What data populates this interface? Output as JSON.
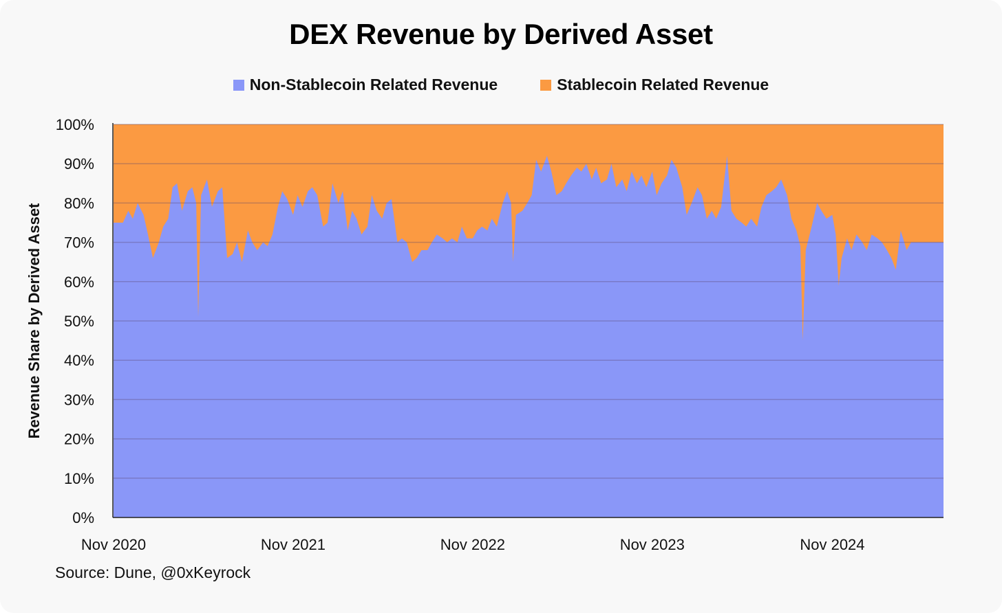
{
  "chart_data": {
    "type": "area",
    "stacked": true,
    "percent": true,
    "title": "DEX Revenue by Derived Asset",
    "ylabel": "Revenue Share by Derived Asset",
    "xlabel": "",
    "source": "Source: Dune, @0xKeyrock",
    "ylim": [
      0,
      100
    ],
    "yticks": [
      0,
      10,
      20,
      30,
      40,
      50,
      60,
      70,
      80,
      90,
      100
    ],
    "ytick_labels": [
      "0%",
      "10%",
      "20%",
      "30%",
      "40%",
      "50%",
      "60%",
      "70%",
      "80%",
      "90%",
      "100%"
    ],
    "xlim": [
      "2020-11-01",
      "2025-06-15"
    ],
    "xticks": [
      "2020-11-01",
      "2021-11-01",
      "2022-11-01",
      "2023-11-01",
      "2024-11-01"
    ],
    "xtick_labels": [
      "Nov 2020",
      "Nov 2021",
      "Nov 2022",
      "Nov 2023",
      "Nov 2024"
    ],
    "grid": true,
    "legend_position": "top-center",
    "series": [
      {
        "name": "Non-Stablecoin Related Revenue",
        "color": "#8a97f8",
        "points": [
          [
            "2020-11-10",
            75
          ],
          [
            "2020-11-20",
            75
          ],
          [
            "2020-12-01",
            78
          ],
          [
            "2020-12-10",
            76
          ],
          [
            "2020-12-20",
            80
          ],
          [
            "2021-01-01",
            77
          ],
          [
            "2021-01-10",
            72
          ],
          [
            "2021-01-20",
            66
          ],
          [
            "2021-02-01",
            70
          ],
          [
            "2021-02-10",
            74
          ],
          [
            "2021-02-20",
            76
          ],
          [
            "2021-03-01",
            84
          ],
          [
            "2021-03-10",
            85
          ],
          [
            "2021-03-20",
            78
          ],
          [
            "2021-04-01",
            83
          ],
          [
            "2021-04-10",
            84
          ],
          [
            "2021-04-18",
            80
          ],
          [
            "2021-04-22",
            51
          ],
          [
            "2021-04-28",
            82
          ],
          [
            "2021-05-10",
            86
          ],
          [
            "2021-05-20",
            79
          ],
          [
            "2021-06-01",
            83
          ],
          [
            "2021-06-10",
            84
          ],
          [
            "2021-06-20",
            66
          ],
          [
            "2021-07-01",
            67
          ],
          [
            "2021-07-10",
            70
          ],
          [
            "2021-07-20",
            65
          ],
          [
            "2021-08-01",
            73
          ],
          [
            "2021-08-10",
            70
          ],
          [
            "2021-08-20",
            68
          ],
          [
            "2021-09-01",
            70
          ],
          [
            "2021-09-10",
            69
          ],
          [
            "2021-09-20",
            72
          ],
          [
            "2021-10-01",
            79
          ],
          [
            "2021-10-10",
            83
          ],
          [
            "2021-10-20",
            81
          ],
          [
            "2021-11-01",
            77
          ],
          [
            "2021-11-10",
            82
          ],
          [
            "2021-11-20",
            79
          ],
          [
            "2021-12-01",
            83
          ],
          [
            "2021-12-10",
            84
          ],
          [
            "2021-12-20",
            82
          ],
          [
            "2022-01-01",
            74
          ],
          [
            "2022-01-10",
            75
          ],
          [
            "2022-01-20",
            85
          ],
          [
            "2022-02-01",
            80
          ],
          [
            "2022-02-10",
            83
          ],
          [
            "2022-02-20",
            73
          ],
          [
            "2022-03-01",
            78
          ],
          [
            "2022-03-10",
            76
          ],
          [
            "2022-03-20",
            72
          ],
          [
            "2022-04-01",
            74
          ],
          [
            "2022-04-10",
            82
          ],
          [
            "2022-04-20",
            78
          ],
          [
            "2022-05-01",
            76
          ],
          [
            "2022-05-10",
            80
          ],
          [
            "2022-05-20",
            81
          ],
          [
            "2022-06-01",
            70
          ],
          [
            "2022-06-10",
            71
          ],
          [
            "2022-06-20",
            70
          ],
          [
            "2022-07-01",
            65
          ],
          [
            "2022-07-10",
            66
          ],
          [
            "2022-07-20",
            68
          ],
          [
            "2022-08-01",
            68
          ],
          [
            "2022-08-10",
            70
          ],
          [
            "2022-08-20",
            72
          ],
          [
            "2022-09-01",
            71
          ],
          [
            "2022-09-10",
            70
          ],
          [
            "2022-09-20",
            71
          ],
          [
            "2022-10-01",
            70
          ],
          [
            "2022-10-10",
            74
          ],
          [
            "2022-10-20",
            71
          ],
          [
            "2022-11-01",
            71
          ],
          [
            "2022-11-10",
            73
          ],
          [
            "2022-11-20",
            74
          ],
          [
            "2022-12-01",
            73
          ],
          [
            "2022-12-10",
            76
          ],
          [
            "2022-12-20",
            74
          ],
          [
            "2023-01-01",
            80
          ],
          [
            "2023-01-10",
            83
          ],
          [
            "2023-01-18",
            80
          ],
          [
            "2023-01-22",
            65
          ],
          [
            "2023-01-28",
            77
          ],
          [
            "2023-02-10",
            78
          ],
          [
            "2023-02-20",
            80
          ],
          [
            "2023-03-01",
            82
          ],
          [
            "2023-03-10",
            91
          ],
          [
            "2023-03-20",
            88
          ],
          [
            "2023-04-01",
            92
          ],
          [
            "2023-04-10",
            88
          ],
          [
            "2023-04-20",
            82
          ],
          [
            "2023-05-01",
            83
          ],
          [
            "2023-05-10",
            85
          ],
          [
            "2023-05-20",
            87
          ],
          [
            "2023-06-01",
            89
          ],
          [
            "2023-06-10",
            88
          ],
          [
            "2023-06-20",
            90
          ],
          [
            "2023-07-01",
            86
          ],
          [
            "2023-07-10",
            89
          ],
          [
            "2023-07-20",
            85
          ],
          [
            "2023-08-01",
            86
          ],
          [
            "2023-08-10",
            90
          ],
          [
            "2023-08-20",
            84
          ],
          [
            "2023-09-01",
            86
          ],
          [
            "2023-09-10",
            83
          ],
          [
            "2023-09-20",
            88
          ],
          [
            "2023-10-01",
            85
          ],
          [
            "2023-10-10",
            87
          ],
          [
            "2023-10-20",
            84
          ],
          [
            "2023-11-01",
            88
          ],
          [
            "2023-11-10",
            82
          ],
          [
            "2023-11-20",
            85
          ],
          [
            "2023-12-01",
            87
          ],
          [
            "2023-12-10",
            91
          ],
          [
            "2023-12-20",
            89
          ],
          [
            "2024-01-01",
            84
          ],
          [
            "2024-01-10",
            77
          ],
          [
            "2024-01-20",
            80
          ],
          [
            "2024-02-01",
            84
          ],
          [
            "2024-02-10",
            82
          ],
          [
            "2024-02-20",
            76
          ],
          [
            "2024-03-01",
            78
          ],
          [
            "2024-03-10",
            76
          ],
          [
            "2024-03-20",
            79
          ],
          [
            "2024-04-01",
            92
          ],
          [
            "2024-04-10",
            78
          ],
          [
            "2024-04-20",
            76
          ],
          [
            "2024-05-01",
            75
          ],
          [
            "2024-05-10",
            74
          ],
          [
            "2024-05-20",
            76
          ],
          [
            "2024-06-01",
            74
          ],
          [
            "2024-06-10",
            79
          ],
          [
            "2024-06-20",
            82
          ],
          [
            "2024-07-01",
            83
          ],
          [
            "2024-07-10",
            84
          ],
          [
            "2024-07-20",
            86
          ],
          [
            "2024-08-01",
            82
          ],
          [
            "2024-08-10",
            76
          ],
          [
            "2024-08-20",
            73
          ],
          [
            "2024-08-28",
            69
          ],
          [
            "2024-09-02",
            45
          ],
          [
            "2024-09-08",
            68
          ],
          [
            "2024-09-20",
            74
          ],
          [
            "2024-10-01",
            80
          ],
          [
            "2024-10-10",
            78
          ],
          [
            "2024-10-20",
            76
          ],
          [
            "2024-11-01",
            77
          ],
          [
            "2024-11-08",
            72
          ],
          [
            "2024-11-14",
            59
          ],
          [
            "2024-11-20",
            66
          ],
          [
            "2024-12-01",
            71
          ],
          [
            "2024-12-10",
            68
          ],
          [
            "2024-12-20",
            72
          ],
          [
            "2025-01-01",
            70
          ],
          [
            "2025-01-10",
            68
          ],
          [
            "2025-01-20",
            72
          ],
          [
            "2025-02-01",
            71
          ],
          [
            "2025-02-10",
            70
          ],
          [
            "2025-02-20",
            68
          ],
          [
            "2025-03-01",
            66
          ],
          [
            "2025-03-10",
            63
          ],
          [
            "2025-03-20",
            73
          ],
          [
            "2025-04-01",
            68
          ],
          [
            "2025-04-10",
            70
          ]
        ]
      },
      {
        "name": "Stablecoin Related Revenue",
        "color": "#fb9a42",
        "stacked_top": 100
      }
    ]
  }
}
